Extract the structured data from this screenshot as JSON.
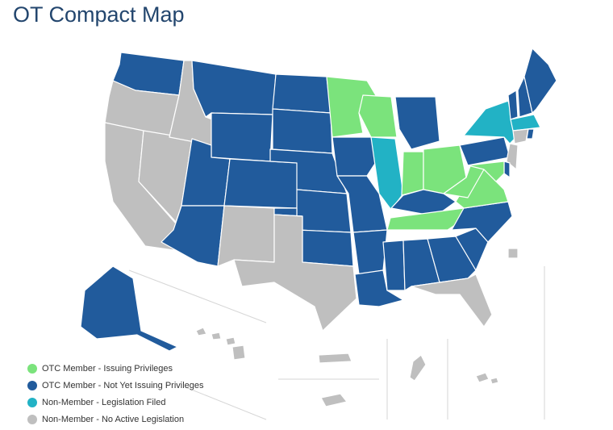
{
  "title": "OT Compact Map",
  "legend": [
    {
      "label": "OTC Member - Issuing Privileges",
      "color": "#7be37c"
    },
    {
      "label": "OTC Member - Not Yet Issuing Privileges",
      "color": "#215b9c"
    },
    {
      "label": "Non-Member - Legislation Filed",
      "color": "#22b2c5"
    },
    {
      "label": "Non-Member - No Active Legislation",
      "color": "#bfbfbf"
    }
  ]
}
